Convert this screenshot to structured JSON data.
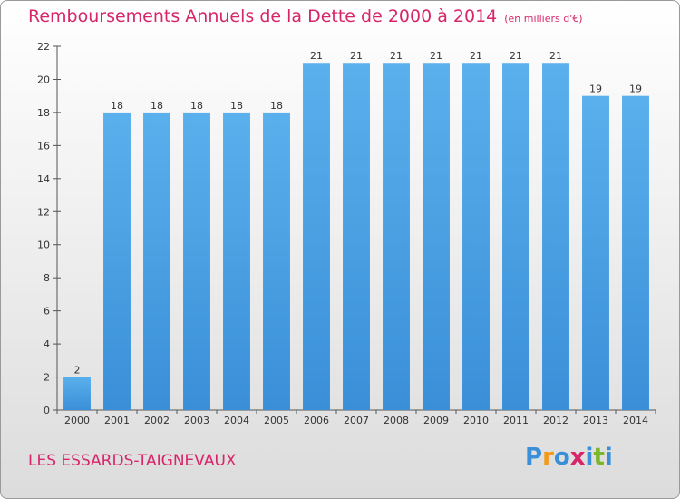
{
  "header": {
    "title": "Remboursements Annuels de la Dette de 2000 à 2014",
    "unit": "(en milliers d'€)"
  },
  "footer": {
    "commune": "LES ESSARDS-TAIGNEVAUX",
    "logo_letters": [
      "P",
      "r",
      "o",
      "x",
      "i",
      "t",
      "i"
    ],
    "logo_colors": [
      "#3a8fd8",
      "#f29a1a",
      "#3a8fd8",
      "#d8256a",
      "#3a8fd8",
      "#7ab829",
      "#3a8fd8"
    ]
  },
  "chart_data": {
    "type": "bar",
    "title": "Remboursements Annuels de la Dette de 2000 à 2014",
    "categories": [
      "2000",
      "2001",
      "2002",
      "2003",
      "2004",
      "2005",
      "2006",
      "2007",
      "2008",
      "2009",
      "2010",
      "2011",
      "2012",
      "2013",
      "2014"
    ],
    "values": [
      2,
      18,
      18,
      18,
      18,
      18,
      21,
      21,
      21,
      21,
      21,
      21,
      21,
      19,
      19
    ],
    "ylim": [
      0,
      22
    ],
    "yticks": [
      0,
      2,
      4,
      6,
      8,
      10,
      12,
      14,
      16,
      18,
      20,
      22
    ],
    "bar_color": "#3a8fd8",
    "bar_color_light": "#5ab0ec",
    "grid": false,
    "legend": "none"
  }
}
